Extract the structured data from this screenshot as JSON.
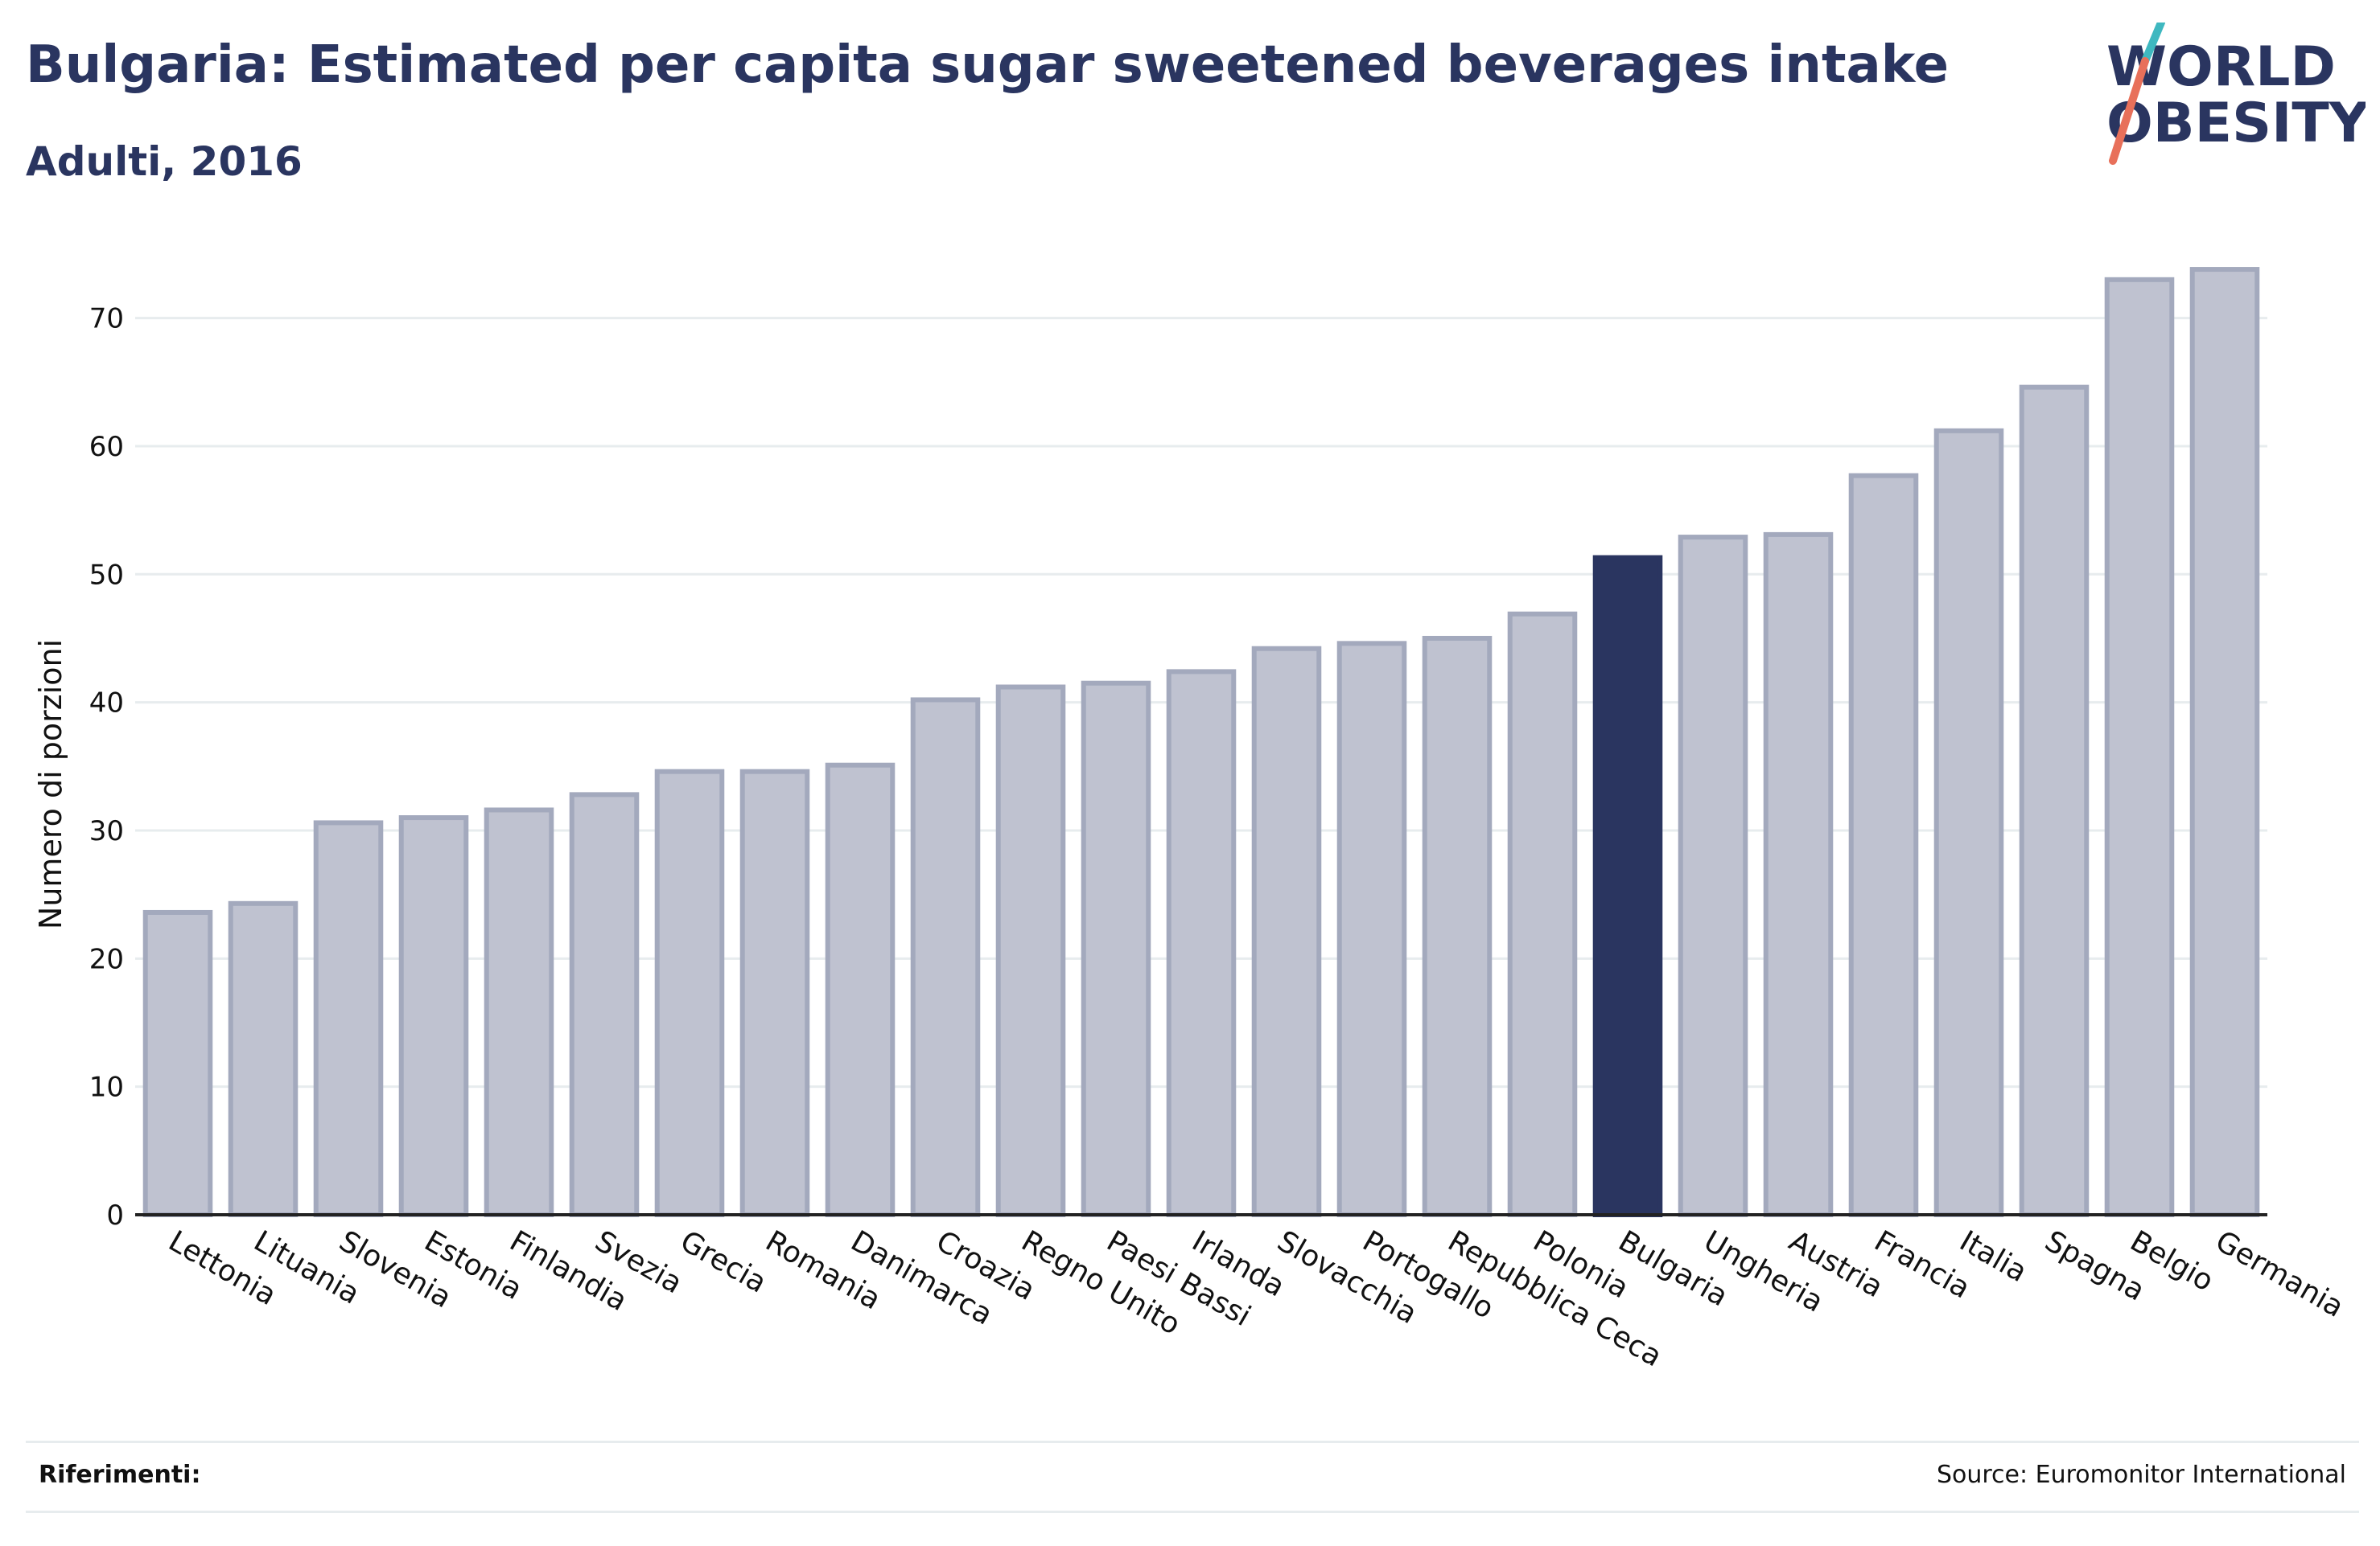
{
  "header": {
    "title": "Bulgaria: Estimated per capita sugar sweetened beverages intake",
    "subtitle": "Adulti, 2016"
  },
  "logo": {
    "line1": "WORLD",
    "line2": "OBESITY",
    "colors": {
      "text": "#2a3560",
      "slash_top": "#3fb8c0",
      "slash_bottom": "#e8705a"
    }
  },
  "footer": {
    "references_label": "Riferimenti:",
    "source": "Source: Euromonitor International"
  },
  "chart_data": {
    "type": "bar",
    "title": "Bulgaria: Estimated per capita sugar sweetened beverages intake",
    "subtitle": "Adulti, 2016",
    "xlabel": "",
    "ylabel": "Numero di porzioni",
    "ylim": [
      0,
      76
    ],
    "yticks": [
      0,
      10,
      20,
      30,
      40,
      50,
      60,
      70
    ],
    "grid": true,
    "highlight": "Bulgaria",
    "colors": {
      "bar_fill": "#bfc2d0",
      "bar_stroke": "#a3a9bd",
      "highlight_fill": "#2a3560",
      "grid": "#e7ecee",
      "axis": "#222222",
      "text": "#111111"
    },
    "categories": [
      "Lettonia",
      "Lituania",
      "Slovenia",
      "Estonia",
      "Finlandia",
      "Svezia",
      "Grecia",
      "Romania",
      "Danimarca",
      "Croazia",
      "Regno Unito",
      "Paesi Bassi",
      "Irlanda",
      "Slovacchia",
      "Portogallo",
      "Repubblica Ceca",
      "Polonia",
      "Bulgaria",
      "Ungheria",
      "Austria",
      "Francia",
      "Italia",
      "Spagna",
      "Belgio",
      "Germania"
    ],
    "values": [
      23.6,
      24.3,
      30.6,
      31.0,
      31.6,
      32.8,
      34.6,
      34.6,
      35.1,
      40.2,
      41.2,
      41.5,
      42.4,
      44.2,
      44.6,
      45.0,
      46.9,
      51.3,
      52.9,
      53.1,
      57.7,
      61.2,
      64.6,
      73.0,
      73.8
    ]
  }
}
